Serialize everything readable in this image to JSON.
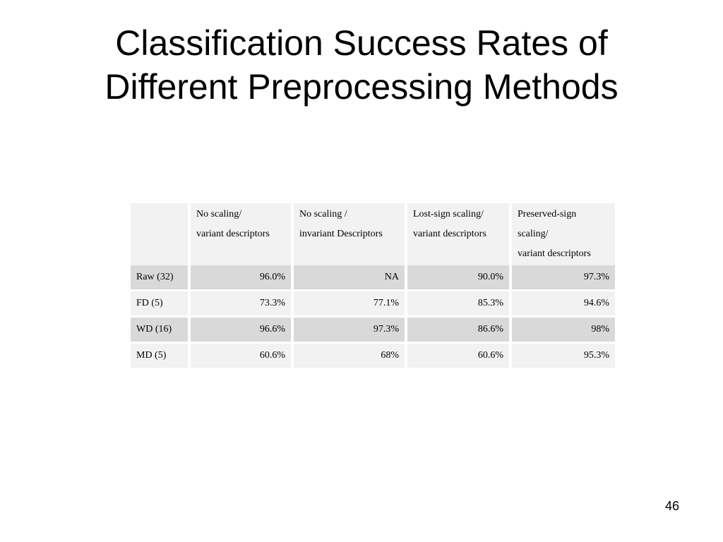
{
  "slide": {
    "title_line1": "Classification Success Rates of",
    "title_line2": "Different Preprocessing Methods",
    "page_number": "46"
  },
  "table": {
    "headers": [
      {
        "lines": [
          "",
          ""
        ]
      },
      {
        "lines": [
          "No scaling/",
          "variant descriptors"
        ]
      },
      {
        "lines": [
          "No scaling /",
          "invariant Descriptors"
        ]
      },
      {
        "lines": [
          "Lost-sign scaling/",
          "variant descriptors"
        ]
      },
      {
        "lines": [
          "Preserved-sign",
          "scaling/",
          "variant descriptors"
        ]
      }
    ],
    "rows": [
      {
        "label": "Raw (32)",
        "values": [
          "96.0%",
          "NA",
          "90.0%",
          "97.3%"
        ]
      },
      {
        "label": "FD (5)",
        "values": [
          "73.3%",
          "77.1%",
          "85.3%",
          "94.6%"
        ]
      },
      {
        "label": "WD (16)",
        "values": [
          "96.6%",
          "97.3%",
          "86.6%",
          "98%"
        ]
      },
      {
        "label": "MD (5)",
        "values": [
          "60.6%",
          "68%",
          "60.6%",
          "95.3%"
        ]
      }
    ]
  }
}
